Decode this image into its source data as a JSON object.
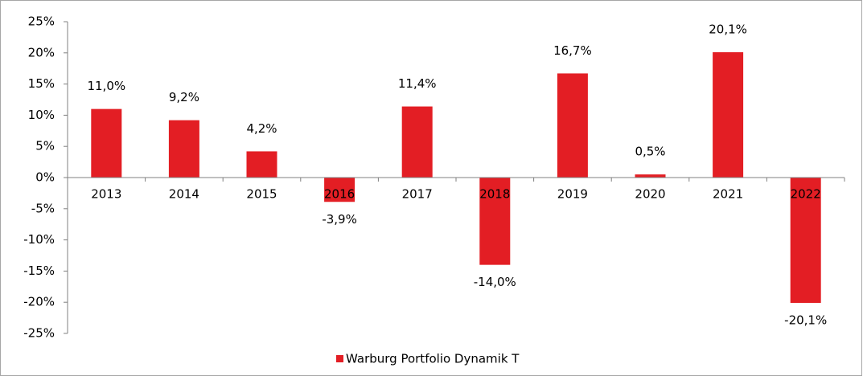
{
  "chart_data": {
    "type": "bar",
    "categories": [
      "2013",
      "2014",
      "2015",
      "2016",
      "2017",
      "2018",
      "2019",
      "2020",
      "2021",
      "2022"
    ],
    "series": [
      {
        "name": "Warburg Portfolio Dynamik T",
        "color": "#e31e24",
        "values": [
          11.0,
          9.2,
          4.2,
          -3.9,
          11.4,
          -14.0,
          16.7,
          0.5,
          20.1,
          -20.1
        ],
        "value_labels": [
          "11,0%",
          "9,2%",
          "4,2%",
          "-3,9%",
          "11,4%",
          "-14,0%",
          "16,7%",
          "0,5%",
          "20,1%",
          "-20,1%"
        ]
      }
    ],
    "ylim": [
      -25,
      25
    ],
    "yticks": [
      {
        "value": -25,
        "label": "-25%"
      },
      {
        "value": -20,
        "label": "-20%"
      },
      {
        "value": -15,
        "label": "-15%"
      },
      {
        "value": -10,
        "label": "-10%"
      },
      {
        "value": -5,
        "label": "-5%"
      },
      {
        "value": 0,
        "label": "0%"
      },
      {
        "value": 5,
        "label": "5%"
      },
      {
        "value": 10,
        "label": "10%"
      },
      {
        "value": 15,
        "label": "15%"
      },
      {
        "value": 20,
        "label": "20%"
      },
      {
        "value": 25,
        "label": "25%"
      }
    ],
    "legend": "bottom"
  }
}
